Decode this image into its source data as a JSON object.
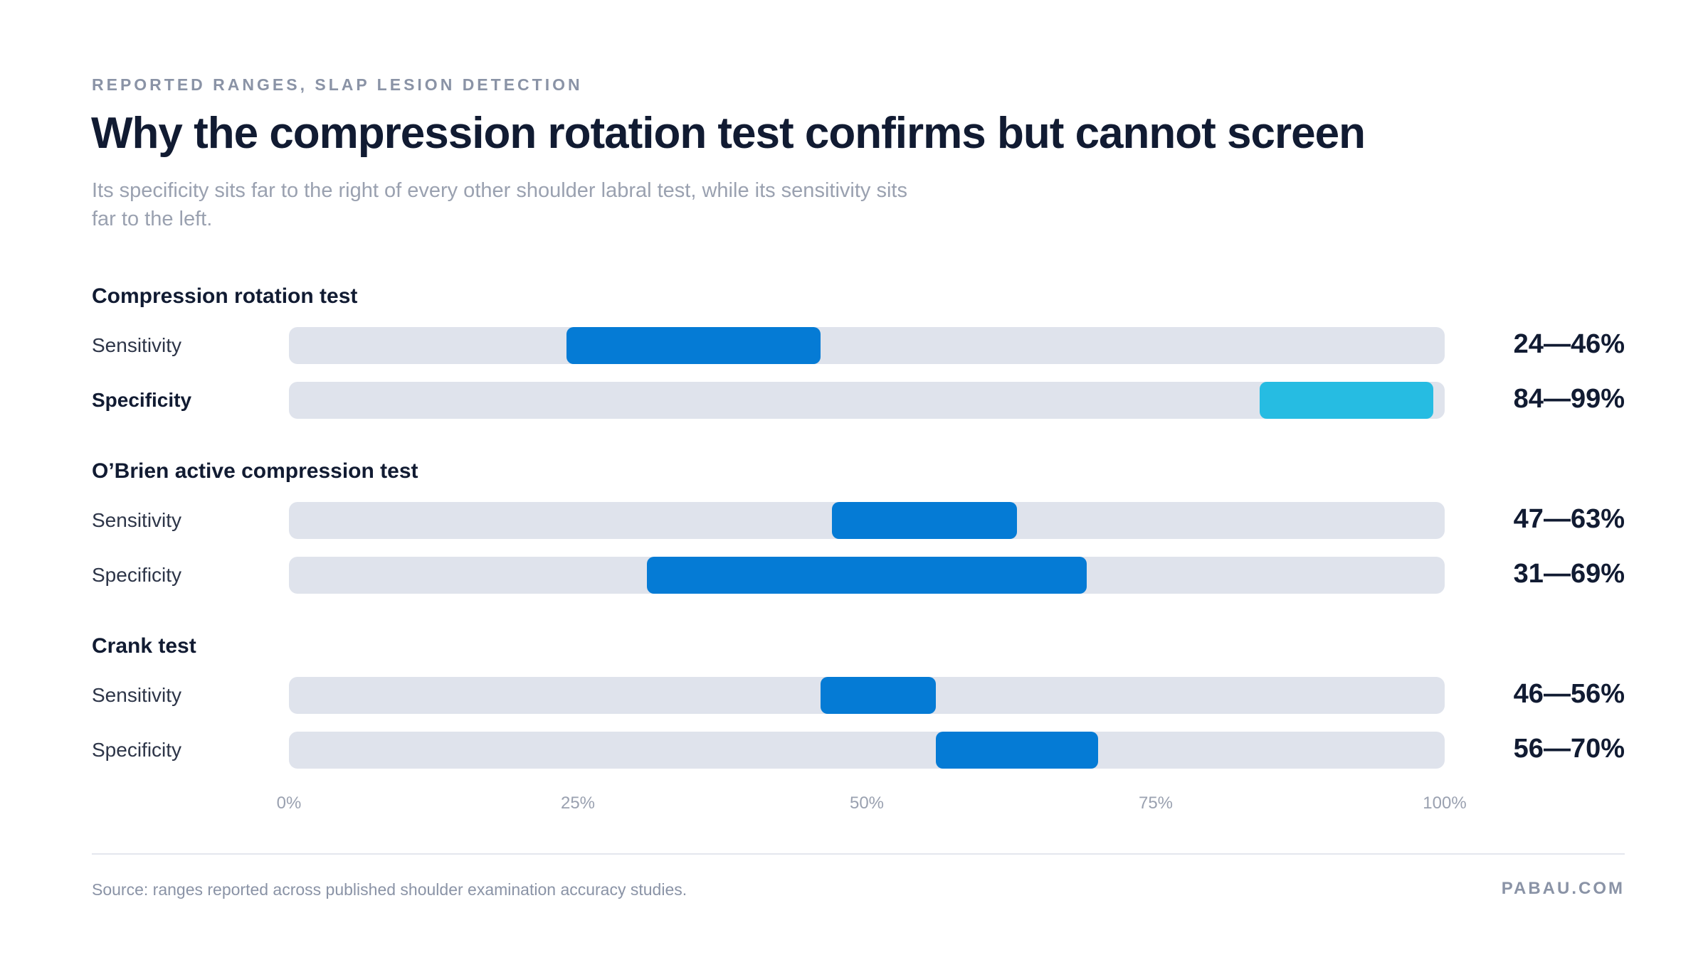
{
  "header": {
    "eyebrow": "REPORTED RANGES, SLAP LESION DETECTION",
    "title": "Why the compression rotation test confirms but cannot screen",
    "subtitle": "Its specificity sits far to the right of every other shoulder labral test, while its sensitivity sits far to the left."
  },
  "colors": {
    "track": "#dfe3ec",
    "range_default": "#057bd5",
    "range_highlight": "#26bce2"
  },
  "chart_data": {
    "type": "range-bar",
    "xlim": [
      0,
      100
    ],
    "x_unit": "%",
    "ticks": [
      "0%",
      "25%",
      "50%",
      "75%",
      "100%"
    ],
    "tick_values": [
      0,
      25,
      50,
      75,
      100
    ],
    "grid": false,
    "groups": [
      {
        "name": "Compression rotation test",
        "rows": [
          {
            "metric": "Sensitivity",
            "low": 24,
            "high": 46,
            "value_label": "24—46%",
            "highlight": false,
            "emphasis": false
          },
          {
            "metric": "Specificity",
            "low": 84,
            "high": 99,
            "value_label": "84—99%",
            "highlight": true,
            "emphasis": true
          }
        ]
      },
      {
        "name": "O’Brien active compression test",
        "rows": [
          {
            "metric": "Sensitivity",
            "low": 47,
            "high": 63,
            "value_label": "47—63%",
            "highlight": false,
            "emphasis": false
          },
          {
            "metric": "Specificity",
            "low": 31,
            "high": 69,
            "value_label": "31—69%",
            "highlight": false,
            "emphasis": false
          }
        ]
      },
      {
        "name": "Crank test",
        "rows": [
          {
            "metric": "Sensitivity",
            "low": 46,
            "high": 56,
            "value_label": "46—56%",
            "highlight": false,
            "emphasis": false
          },
          {
            "metric": "Specificity",
            "low": 56,
            "high": 70,
            "value_label": "56—70%",
            "highlight": false,
            "emphasis": false
          }
        ]
      }
    ]
  },
  "footer": {
    "source": "Source: ranges reported across published shoulder examination accuracy studies.",
    "brand": "PABAU.COM"
  }
}
